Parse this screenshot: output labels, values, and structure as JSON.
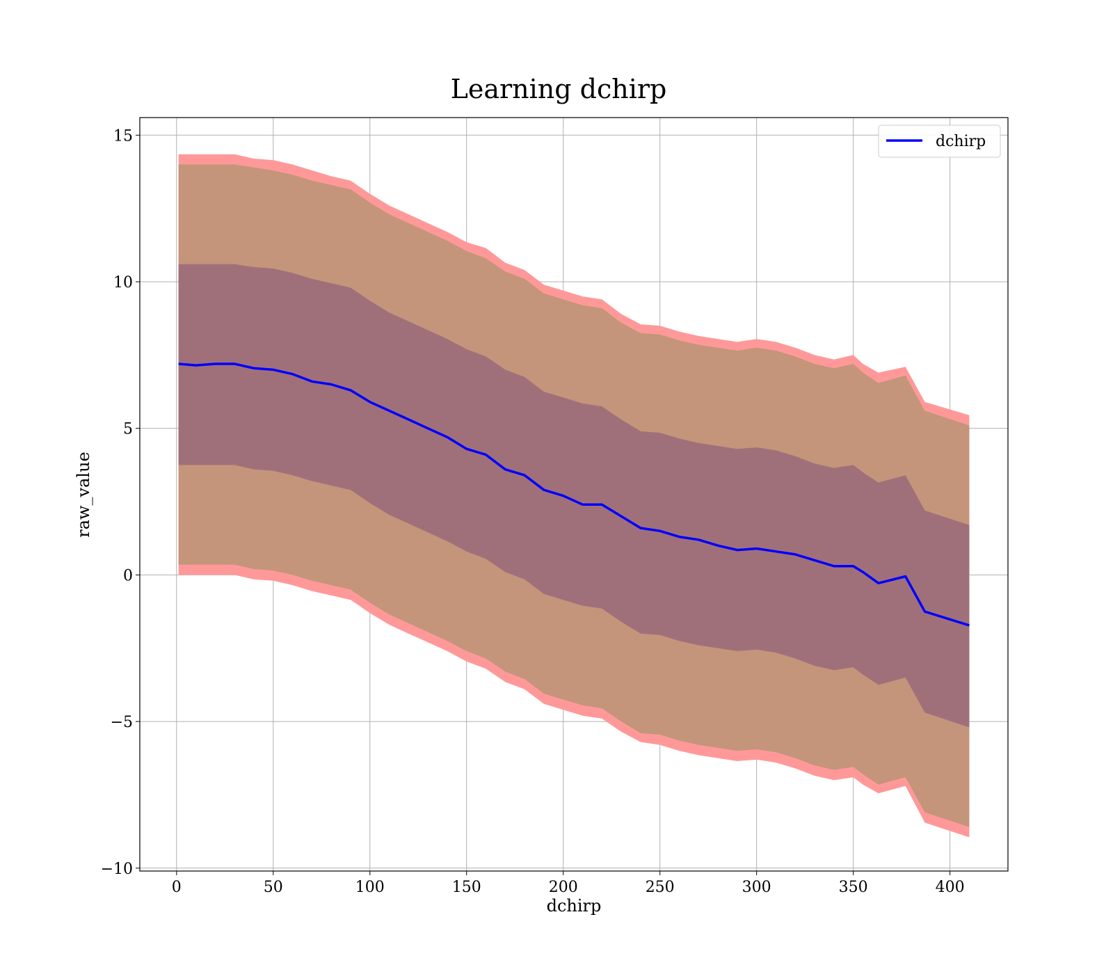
{
  "chart_data": {
    "type": "area",
    "title": "Learning dchirp",
    "xlabel": "dchirp",
    "ylabel": "raw_value",
    "xlim": [
      -19,
      430
    ],
    "ylim": [
      -10.1,
      15.6
    ],
    "xticks": [
      0,
      50,
      100,
      150,
      200,
      250,
      300,
      350,
      400
    ],
    "xtick_labels": [
      "0",
      "50",
      "100",
      "150",
      "200",
      "250",
      "300",
      "350",
      "400"
    ],
    "yticks": [
      -10,
      -5,
      0,
      5,
      10,
      15
    ],
    "ytick_labels": [
      "−10",
      "−5",
      "0",
      "5",
      "10",
      "15"
    ],
    "grid": true,
    "legend": {
      "position": "top-right",
      "entries": [
        "dchirp"
      ]
    },
    "colors": {
      "line": "#0000ff",
      "outer_band": "#ff9999",
      "band_2sigma": "#c4957a",
      "band_1sigma": "#a0707a"
    },
    "x": [
      1,
      10,
      20,
      30,
      40,
      50,
      60,
      70,
      80,
      90,
      100,
      110,
      120,
      130,
      140,
      150,
      160,
      170,
      180,
      190,
      200,
      210,
      220,
      230,
      240,
      250,
      260,
      270,
      280,
      290,
      300,
      310,
      320,
      330,
      340,
      350,
      355,
      363,
      377,
      387,
      410
    ],
    "series": [
      {
        "name": "dchirp",
        "role": "mean",
        "values": [
          7.2,
          7.15,
          7.2,
          7.2,
          7.05,
          7.0,
          6.85,
          6.6,
          6.5,
          6.3,
          5.9,
          5.6,
          5.3,
          5.0,
          4.7,
          4.3,
          4.1,
          3.6,
          3.4,
          2.9,
          2.7,
          2.4,
          2.4,
          2.0,
          1.6,
          1.5,
          1.3,
          1.2,
          1.0,
          0.85,
          0.9,
          0.8,
          0.7,
          0.5,
          0.3,
          0.3,
          0.1,
          -0.28,
          -0.05,
          -1.25,
          -1.72
        ]
      },
      {
        "name": "upper_outer",
        "role": "band",
        "values": [
          14.35,
          14.35,
          14.35,
          14.35,
          14.2,
          14.15,
          14.0,
          13.8,
          13.6,
          13.45,
          13.0,
          12.6,
          12.3,
          12.0,
          11.7,
          11.35,
          11.15,
          10.65,
          10.4,
          9.9,
          9.7,
          9.5,
          9.4,
          8.9,
          8.55,
          8.5,
          8.3,
          8.15,
          8.05,
          7.95,
          8.05,
          7.95,
          7.75,
          7.5,
          7.35,
          7.5,
          7.2,
          6.9,
          7.1,
          5.9,
          5.45
        ]
      },
      {
        "name": "upper_2sigma",
        "role": "band",
        "values": [
          14.0,
          14.0,
          14.0,
          14.0,
          13.9,
          13.8,
          13.65,
          13.45,
          13.3,
          13.15,
          12.7,
          12.3,
          12.0,
          11.7,
          11.4,
          11.05,
          10.8,
          10.35,
          10.1,
          9.6,
          9.4,
          9.2,
          9.1,
          8.6,
          8.25,
          8.2,
          8.0,
          7.85,
          7.75,
          7.65,
          7.75,
          7.65,
          7.45,
          7.2,
          7.05,
          7.2,
          6.9,
          6.55,
          6.8,
          5.6,
          5.1
        ]
      },
      {
        "name": "upper_1sigma",
        "role": "band",
        "values": [
          10.6,
          10.6,
          10.6,
          10.6,
          10.5,
          10.45,
          10.3,
          10.1,
          9.95,
          9.8,
          9.35,
          8.95,
          8.65,
          8.35,
          8.05,
          7.7,
          7.45,
          7.0,
          6.75,
          6.25,
          6.05,
          5.85,
          5.75,
          5.3,
          4.9,
          4.85,
          4.65,
          4.5,
          4.4,
          4.3,
          4.35,
          4.25,
          4.05,
          3.8,
          3.65,
          3.75,
          3.5,
          3.15,
          3.4,
          2.2,
          1.7
        ]
      },
      {
        "name": "lower_1sigma",
        "role": "band",
        "values": [
          3.75,
          3.75,
          3.75,
          3.75,
          3.6,
          3.55,
          3.4,
          3.2,
          3.05,
          2.9,
          2.45,
          2.05,
          1.75,
          1.45,
          1.15,
          0.8,
          0.55,
          0.1,
          -0.15,
          -0.65,
          -0.85,
          -1.05,
          -1.15,
          -1.6,
          -2.0,
          -2.05,
          -2.25,
          -2.4,
          -2.5,
          -2.6,
          -2.55,
          -2.65,
          -2.85,
          -3.1,
          -3.25,
          -3.15,
          -3.4,
          -3.75,
          -3.5,
          -4.7,
          -5.2
        ]
      },
      {
        "name": "lower_2sigma",
        "role": "band",
        "values": [
          0.35,
          0.35,
          0.35,
          0.35,
          0.2,
          0.15,
          0.0,
          -0.2,
          -0.35,
          -0.5,
          -0.95,
          -1.35,
          -1.65,
          -1.95,
          -2.25,
          -2.6,
          -2.85,
          -3.3,
          -3.55,
          -4.05,
          -4.25,
          -4.45,
          -4.55,
          -5.0,
          -5.4,
          -5.45,
          -5.65,
          -5.8,
          -5.9,
          -6.0,
          -5.95,
          -6.05,
          -6.25,
          -6.5,
          -6.65,
          -6.55,
          -6.8,
          -7.15,
          -6.9,
          -8.1,
          -8.6
        ]
      },
      {
        "name": "lower_outer",
        "role": "band",
        "values": [
          0.0,
          0.0,
          0.0,
          0.0,
          -0.15,
          -0.2,
          -0.35,
          -0.55,
          -0.7,
          -0.85,
          -1.3,
          -1.7,
          -2.0,
          -2.3,
          -2.6,
          -2.95,
          -3.2,
          -3.65,
          -3.9,
          -4.4,
          -4.6,
          -4.8,
          -4.9,
          -5.35,
          -5.7,
          -5.8,
          -6.0,
          -6.15,
          -6.25,
          -6.35,
          -6.3,
          -6.4,
          -6.6,
          -6.85,
          -7.0,
          -6.9,
          -7.15,
          -7.45,
          -7.2,
          -8.45,
          -8.95
        ]
      }
    ]
  }
}
